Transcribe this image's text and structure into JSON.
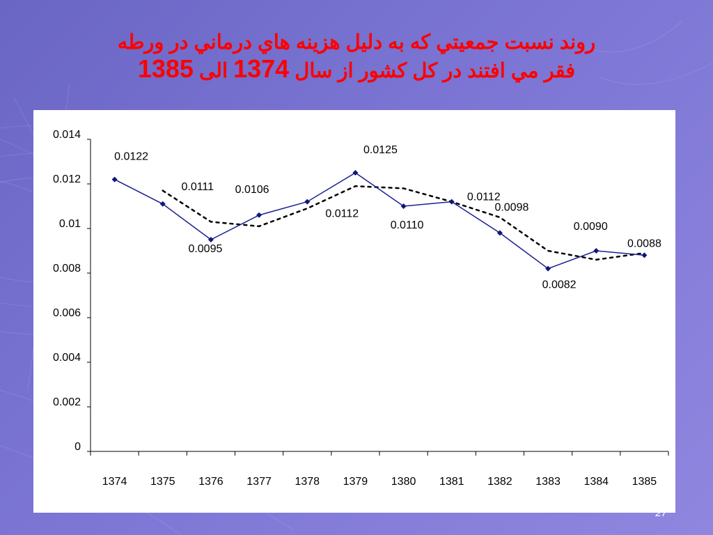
{
  "slide": {
    "title_part1": "روند نسبت جمعيتي كه به دليل هزينه هاي درماني در ورطه",
    "title_part2": "فقر مي افتند در كل كشور از سال",
    "title_year_start": "1374",
    "title_connector": "الى",
    "title_year_end": "1385",
    "page_number": "27",
    "colors": {
      "title": "#ff0000",
      "background": "#7a73d2",
      "panel": "#ffffff"
    }
  },
  "chart_data": {
    "type": "line",
    "categories": [
      "1374",
      "1375",
      "1376",
      "1377",
      "1378",
      "1379",
      "1380",
      "1381",
      "1382",
      "1383",
      "1384",
      "1385"
    ],
    "series": [
      {
        "values": [
          0.0122,
          0.0111,
          0.0095,
          0.0106,
          0.0112,
          0.0125,
          0.011,
          0.0112,
          0.0098,
          0.0082,
          0.009,
          0.0088
        ],
        "color": "#1a1f8f",
        "marker": "diamond"
      },
      {
        "values": [
          null,
          0.0117,
          0.0103,
          0.0101,
          0.0109,
          0.0119,
          0.0118,
          0.0112,
          0.0105,
          0.009,
          0.0086,
          0.0089
        ],
        "color": "#000000",
        "style": "dotted",
        "kind": "moving-average trendline"
      }
    ],
    "data_labels": [
      "0.0122",
      "0.0111",
      "0.0095",
      "0.0106",
      "0.0112",
      "0.0125",
      "0.0110",
      "0.0112",
      "0.0098",
      "0.0082",
      "0.0090",
      "0.0088"
    ],
    "y_ticks": [
      "0",
      "0.002",
      "0.004",
      "0.006",
      "0.008",
      "0.01",
      "0.012",
      "0.014"
    ],
    "ylim": [
      0,
      0.014
    ],
    "title": "",
    "xlabel": "",
    "ylabel": "",
    "grid": false,
    "legend": "none"
  }
}
